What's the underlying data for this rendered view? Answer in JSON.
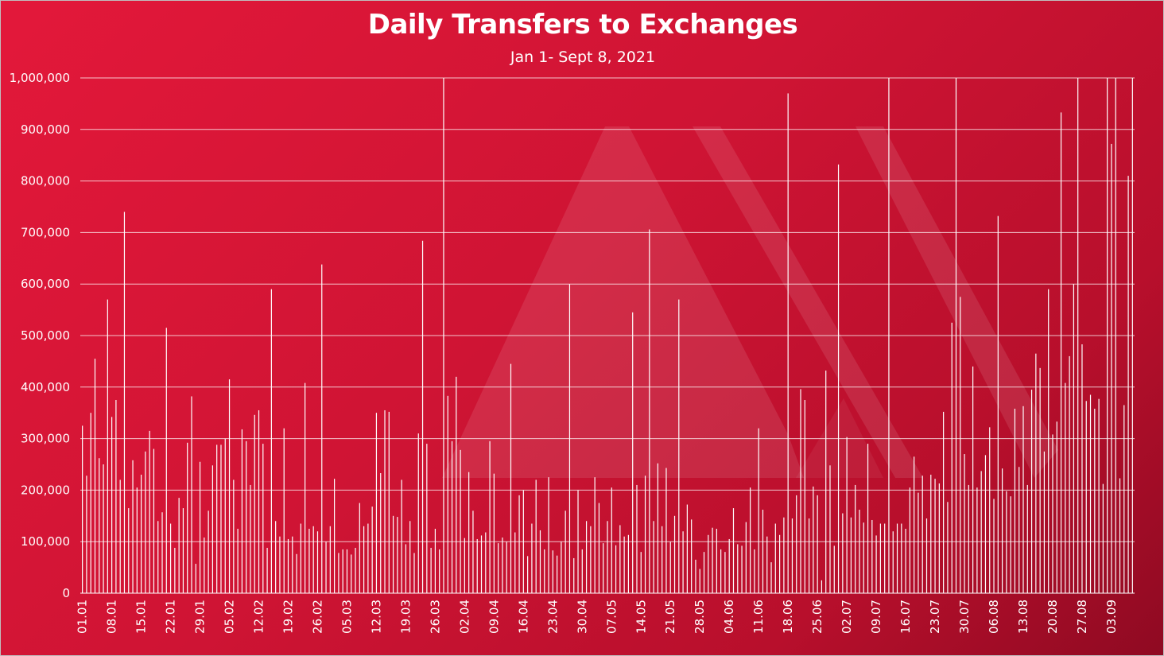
{
  "chart_data": {
    "type": "bar",
    "title": "Daily Transfers to Exchanges",
    "subtitle": "Jan 1- Sept 8, 2021",
    "xlabel": "",
    "ylabel": "",
    "ylim": [
      0,
      1000000
    ],
    "grid": true,
    "legend": "none",
    "y_ticks": [
      "0",
      "100,000",
      "200,000",
      "300,000",
      "400,000",
      "500,000",
      "600,000",
      "700,000",
      "800,000",
      "900,000",
      "1,000,000"
    ],
    "x_tick_labels": [
      "01.01",
      "08.01",
      "15.01",
      "22.01",
      "29.01",
      "05.02",
      "12.02",
      "19.02",
      "26.02",
      "05.03",
      "12.03",
      "19.03",
      "26.03",
      "02.04",
      "09.04",
      "16.04",
      "23.04",
      "30.04",
      "07.05",
      "14.05",
      "21.05",
      "28.05",
      "04.06",
      "11.06",
      "18.06",
      "25.06",
      "02.07",
      "09.07",
      "16.07",
      "23.07",
      "30.07",
      "06.08",
      "13.08",
      "20.08",
      "27.08",
      "03.09"
    ],
    "x_tick_interval_days": 7,
    "start_date": "01.01",
    "end_date": "08.09",
    "values": [
      325000,
      228000,
      350000,
      455000,
      262000,
      250000,
      570000,
      342000,
      375000,
      220000,
      740000,
      165000,
      258000,
      205000,
      230000,
      275000,
      315000,
      280000,
      140000,
      157000,
      515000,
      135000,
      88000,
      185000,
      165000,
      292000,
      382000,
      57000,
      255000,
      108000,
      160000,
      248000,
      288000,
      288000,
      300000,
      415000,
      220000,
      125000,
      318000,
      295000,
      210000,
      346000,
      355000,
      290000,
      88000,
      590000,
      140000,
      110000,
      320000,
      105000,
      110000,
      76000,
      135000,
      408000,
      125000,
      130000,
      120000,
      638000,
      100000,
      130000,
      222000,
      78000,
      85000,
      85000,
      75000,
      88000,
      175000,
      130000,
      135000,
      168000,
      350000,
      233000,
      355000,
      352000,
      150000,
      148000,
      220000,
      95000,
      140000,
      78000,
      310000,
      684000,
      290000,
      88000,
      125000,
      85000,
      1000000,
      383000,
      295000,
      420000,
      278000,
      107000,
      235000,
      160000,
      105000,
      112000,
      118000,
      295000,
      232000,
      97000,
      108000,
      100000,
      445000,
      118000,
      190000,
      200000,
      72000,
      135000,
      220000,
      122000,
      85000,
      225000,
      83000,
      73000,
      100000,
      160000,
      600000,
      68000,
      200000,
      85000,
      140000,
      130000,
      225000,
      175000,
      97000,
      140000,
      205000,
      93000,
      132000,
      110000,
      113000,
      545000,
      210000,
      80000,
      228000,
      706000,
      140000,
      252000,
      130000,
      243000,
      100000,
      150000,
      570000,
      120000,
      172000,
      143000,
      65000,
      47000,
      80000,
      113000,
      127000,
      125000,
      85000,
      80000,
      105000,
      165000,
      95000,
      92000,
      138000,
      205000,
      85000,
      320000,
      162000,
      110000,
      60000,
      135000,
      113000,
      147000,
      970000,
      145000,
      190000,
      396000,
      375000,
      145000,
      207000,
      190000,
      25000,
      432000,
      248000,
      92000,
      832000,
      155000,
      303000,
      147000,
      210000,
      162000,
      137000,
      290000,
      142000,
      112000,
      135000,
      135000,
      1000000,
      120000,
      135000,
      135000,
      125000,
      205000,
      265000,
      195000,
      228000,
      145000,
      230000,
      222000,
      213000,
      352000,
      177000,
      525000,
      1000000,
      575000,
      270000,
      210000,
      440000,
      205000,
      237000,
      268000,
      322000,
      183000,
      732000,
      242000,
      198000,
      188000,
      358000,
      245000,
      363000,
      210000,
      395000,
      465000,
      437000,
      275000,
      590000,
      308000,
      333000,
      933000,
      408000,
      460000,
      600000,
      1000000,
      483000,
      373000,
      385000,
      358000,
      377000,
      212000,
      1000000,
      872000,
      1000000,
      223000,
      365000,
      810000,
      1000000
    ]
  }
}
